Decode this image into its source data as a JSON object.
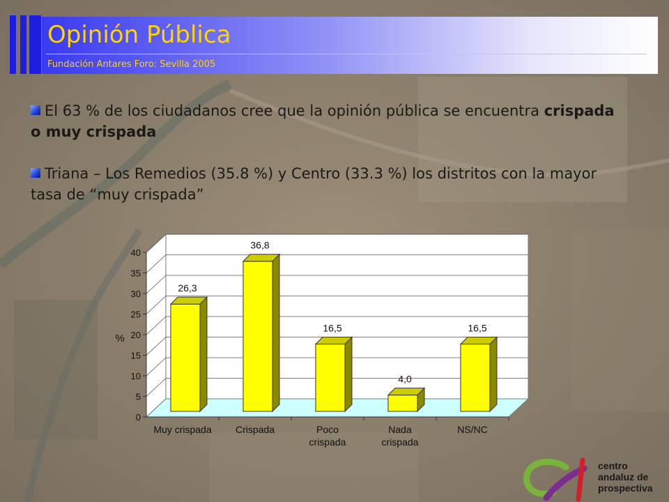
{
  "header": {
    "title": "Opinión Pública",
    "subtitle": "Fundación Antares Foro: Sevilla 2005"
  },
  "bullets": [
    {
      "text_pre": "El 63 % de los ciudadanos cree que la opinión pública se encuentra ",
      "text_bold": "crispada o muy crispada"
    },
    {
      "text_pre": "Triana – Los Remedios (35.8 %) y Centro (33.3 %) los distritos con la mayor tasa de “muy crispada”",
      "text_bold": ""
    }
  ],
  "chart_data": {
    "type": "bar",
    "categories": [
      [
        "Muy crispada"
      ],
      [
        "Crispada"
      ],
      [
        "Poco",
        "crispada"
      ],
      [
        "Nada",
        "crispada"
      ],
      [
        "NS/NC"
      ]
    ],
    "values": [
      26.3,
      36.8,
      16.5,
      4.0,
      16.5
    ],
    "value_labels": [
      "26,3",
      "36,8",
      "16,5",
      "4,0",
      "16,5"
    ],
    "ylabel": "%",
    "ylim": [
      0,
      40
    ],
    "yticks": [
      "0",
      "5",
      "10",
      "15",
      "20",
      "25",
      "30",
      "35",
      "40"
    ],
    "colors": {
      "bar": "#ffff00",
      "bar_side": "#8a8a00",
      "bar_top": "#cccc00",
      "floor": "#ccffff",
      "wall": "#ffffff"
    }
  },
  "logo": {
    "lines": [
      "centro",
      "andaluz de",
      "prospectiva"
    ],
    "colors": {
      "green": "#7ab33c",
      "purple": "#7a2e8e",
      "red": "#d21f2a"
    }
  }
}
